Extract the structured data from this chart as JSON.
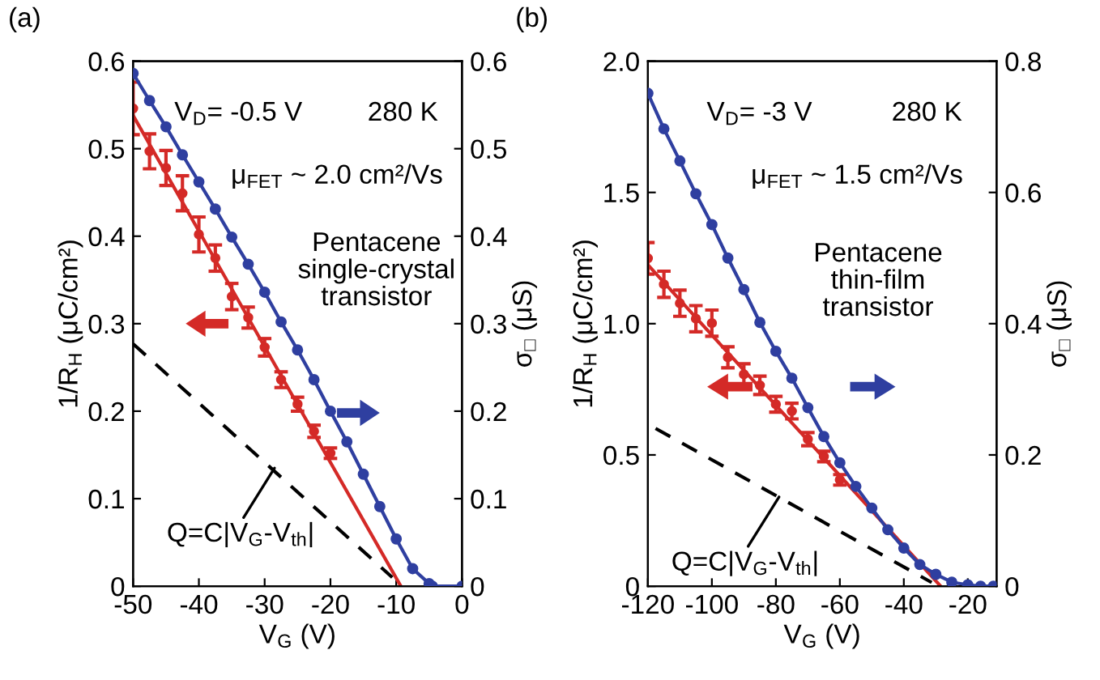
{
  "chart_data": [
    {
      "type": "line",
      "title": "(a)",
      "xlabel": "V$_{G}$ (V)",
      "ylabel": "1/R$_{H}$ (μC/cm²)",
      "y2label": "σ$_{□}$ (μS)",
      "xlim": [
        -50,
        0
      ],
      "xticks": [
        -50,
        -40,
        -30,
        -20,
        -10,
        0
      ],
      "ylim": [
        0,
        0.6
      ],
      "yticks": [
        0,
        0.1,
        0.2,
        0.3,
        0.4,
        0.5,
        0.6
      ],
      "y2lim": [
        0,
        0.6
      ],
      "y2ticks": [
        0,
        0.1,
        0.2,
        0.3,
        0.4,
        0.5,
        0.6
      ],
      "annotations": [
        "V$_{D}$= -0.5 V",
        "280 K",
        "μ$_{FET}$ ~ 2.0 cm²/Vs",
        "Pentacene\nsingle-crystal\ntransistor",
        {
          "text": "Q=C|V$_{G}$-V$_{th}$|",
          "x": -28.5,
          "y": 0.135
        }
      ],
      "series": [
        {
          "type": "scatter",
          "color": "#d42a27",
          "marker": "circle",
          "x": [
            -50,
            -47.5,
            -45,
            -42.5,
            -40,
            -37.5,
            -35,
            -32.5,
            -30,
            -27.5,
            -25,
            -22.5,
            -20
          ],
          "values": [
            0.546,
            0.497,
            0.478,
            0.449,
            0.402,
            0.375,
            0.331,
            0.307,
            0.273,
            0.236,
            0.208,
            0.177,
            0.152
          ],
          "errors": [
            0.03,
            0.02,
            0.02,
            0.02,
            0.02,
            0.015,
            0.015,
            0.012,
            0.01,
            0.009,
            0.008,
            0.007,
            0.006
          ]
        },
        {
          "color": "#d42a27",
          "marker": "none",
          "line_style": "solid",
          "x": [
            -50,
            -9.3
          ],
          "values": [
            0.538,
            0
          ]
        },
        {
          "color": "#000000",
          "marker": "none",
          "line_style": "dashed",
          "x": [
            -50,
            -10.6
          ],
          "values": [
            0.277,
            0.01
          ]
        },
        {
          "axis": "y2",
          "color": "#2f3fa0",
          "marker": "circle",
          "line_style": "solid",
          "x": [
            -50,
            -47.5,
            -45,
            -42.5,
            -40,
            -37.5,
            -35,
            -32.5,
            -30,
            -27.5,
            -25,
            -22.5,
            -20,
            -17.5,
            -15,
            -12.5,
            -10,
            -7.5,
            -5,
            -4.5,
            0
          ],
          "values": [
            0.586,
            0.555,
            0.525,
            0.493,
            0.462,
            0.431,
            0.399,
            0.368,
            0.336,
            0.302,
            0.27,
            0.236,
            0.2,
            0.165,
            0.128,
            0.091,
            0.054,
            0.02,
            0.003,
            0,
            0
          ]
        }
      ]
    },
    {
      "type": "line",
      "title": "(b)",
      "xlabel": "V$_{G}$ (V)",
      "ylabel": "1/R$_{H}$ (μC/cm²)",
      "y2label": "σ$_{□}$ (μS)",
      "xlim": [
        -120,
        -11
      ],
      "xticks": [
        -120,
        -100,
        -80,
        -60,
        -40,
        -20
      ],
      "ylim": [
        0,
        2.0
      ],
      "yticks": [
        0,
        {
          "value": 0.5,
          "label": "0.5"
        },
        {
          "value": 1.0,
          "label": "1.0"
        },
        {
          "value": 1.5,
          "label": "1.5"
        },
        {
          "value": 2.0,
          "label": "2.0"
        }
      ],
      "y2lim": [
        0,
        0.8
      ],
      "y2ticks": [
        0,
        0.2,
        0.4,
        0.6,
        0.8
      ],
      "annotations": [
        "V$_{D}$= -3 V",
        "280 K",
        "μ$_{FET}$ ~ 1.5 cm²/Vs",
        "Pentacene\nthin-film\ntransistor",
        {
          "text": "Q=C|V$_{G}$-V$_{th}$|",
          "x": -79,
          "y": 0.34
        }
      ],
      "series": [
        {
          "type": "scatter",
          "color": "#d42a27",
          "marker": "circle",
          "x": [
            -120,
            -115,
            -110,
            -105,
            -100,
            -95,
            -90,
            -85,
            -80,
            -75,
            -70,
            -65,
            -60
          ],
          "values": [
            1.249,
            1.15,
            1.078,
            1.019,
            1.002,
            0.872,
            0.807,
            0.765,
            0.693,
            0.667,
            0.56,
            0.494,
            0.405
          ],
          "errors": [
            0.06,
            0.05,
            0.05,
            0.05,
            0.05,
            0.04,
            0.04,
            0.035,
            0.03,
            0.03,
            0.025,
            0.02,
            0.02
          ]
        },
        {
          "color": "#d42a27",
          "marker": "none",
          "line_style": "solid",
          "x": [
            -120,
            -28.5
          ],
          "values": [
            1.224,
            0
          ]
        },
        {
          "color": "#000000",
          "marker": "none",
          "line_style": "dashed",
          "x": [
            -117.6,
            -31.3
          ],
          "values": [
            0.601,
            0.014
          ]
        },
        {
          "axis": "y2",
          "color": "#2f3fa0",
          "marker": "circle",
          "line_style": "solid",
          "x": [
            -120,
            -115,
            -110,
            -105,
            -100,
            -95,
            -90,
            -85,
            -80,
            -75,
            -70,
            -65,
            -60,
            -55,
            -50,
            -45,
            -40,
            -35,
            -30,
            -25,
            -20,
            -16,
            -12
          ],
          "values": [
            0.751,
            0.697,
            0.648,
            0.598,
            0.551,
            0.5,
            0.452,
            0.402,
            0.358,
            0.317,
            0.272,
            0.228,
            0.188,
            0.152,
            0.119,
            0.086,
            0.058,
            0.033,
            0.018,
            0.006,
            0.002,
            0,
            0
          ]
        }
      ]
    }
  ]
}
